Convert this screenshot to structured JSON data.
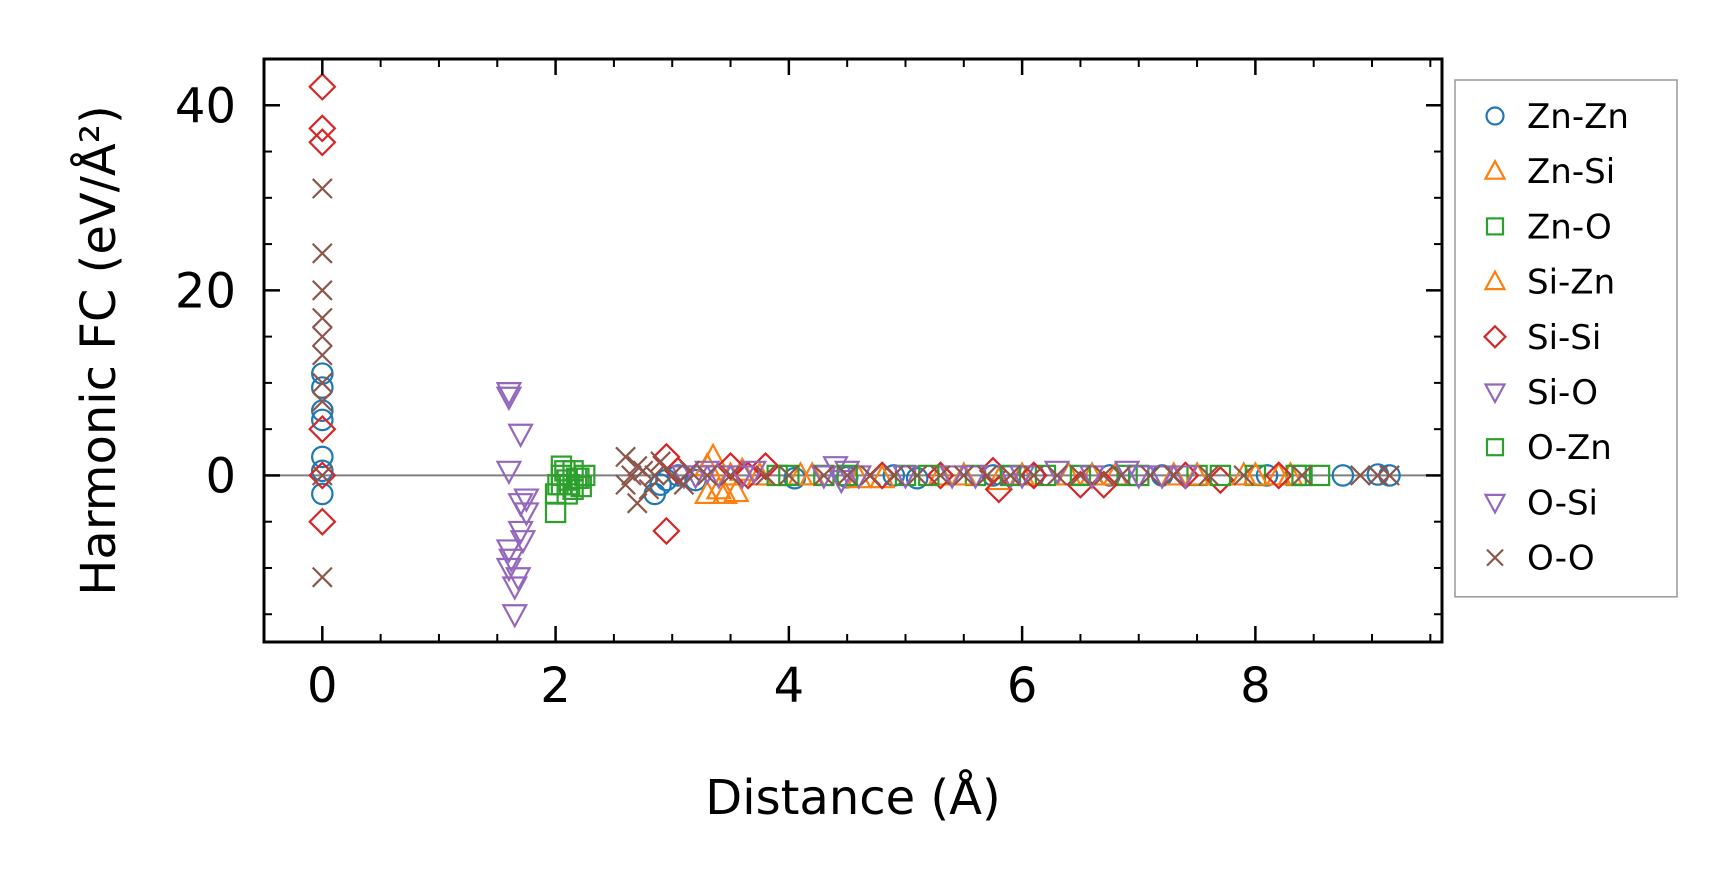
{
  "chart_data": {
    "type": "scatter",
    "xlabel": "Distance (Å)",
    "ylabel": "Harmonic FC (eV/Å²)",
    "xlim": [
      -0.5,
      9.6
    ],
    "ylim": [
      -18,
      45
    ],
    "xticks": [
      0,
      2,
      4,
      6,
      8
    ],
    "yticks": [
      0,
      20,
      40
    ],
    "xtick_labels": [
      "0",
      "2",
      "4",
      "6",
      "8"
    ],
    "ytick_labels": [
      "0",
      "20",
      "40"
    ],
    "zero_line": 0,
    "legend_position": "right-outside",
    "series": [
      {
        "name": "Zn-Zn",
        "marker": "circle",
        "color": "#1f77b4",
        "points": [
          [
            0,
            11
          ],
          [
            0,
            9.5
          ],
          [
            0,
            7
          ],
          [
            0,
            6
          ],
          [
            0,
            2
          ],
          [
            0,
            0.5
          ],
          [
            0,
            -2
          ],
          [
            2.85,
            -2
          ],
          [
            2.9,
            -1
          ],
          [
            2.95,
            -0.5
          ],
          [
            3.05,
            0
          ],
          [
            3.2,
            -0.5
          ],
          [
            4.05,
            -0.3
          ],
          [
            4.5,
            -0.2
          ],
          [
            4.9,
            0
          ],
          [
            5.1,
            -0.3
          ],
          [
            5.75,
            0
          ],
          [
            6.1,
            0
          ],
          [
            6.75,
            0
          ],
          [
            7.2,
            0
          ],
          [
            8.1,
            0
          ],
          [
            8.75,
            0
          ],
          [
            9.05,
            0.1
          ],
          [
            9.15,
            0
          ]
        ]
      },
      {
        "name": "Zn-Si",
        "marker": "triangle-up",
        "color": "#ff7f0e",
        "points": [
          [
            3.3,
            -2
          ],
          [
            3.35,
            2
          ],
          [
            3.4,
            -1.5
          ],
          [
            3.55,
            -1.8
          ],
          [
            3.6,
            0.5
          ],
          [
            3.75,
            0
          ],
          [
            4.2,
            0
          ],
          [
            4.8,
            -0.3
          ],
          [
            5.3,
            0
          ],
          [
            5.8,
            -0.5
          ],
          [
            6.4,
            0
          ],
          [
            6.8,
            0
          ],
          [
            7.3,
            0
          ],
          [
            7.9,
            0
          ],
          [
            8.3,
            0
          ]
        ]
      },
      {
        "name": "Zn-O",
        "marker": "square",
        "color": "#2ca02c",
        "points": [
          [
            2.0,
            -4
          ],
          [
            2.0,
            -2
          ],
          [
            2.05,
            -1
          ],
          [
            2.05,
            0
          ],
          [
            2.05,
            1
          ],
          [
            2.1,
            -2
          ],
          [
            2.1,
            -0.5
          ],
          [
            2.15,
            -1.5
          ],
          [
            2.15,
            0.5
          ],
          [
            2.2,
            -0.3
          ],
          [
            2.25,
            0
          ],
          [
            3.9,
            0
          ],
          [
            4.3,
            0
          ],
          [
            5.0,
            0
          ],
          [
            5.6,
            0
          ],
          [
            6.2,
            0
          ],
          [
            6.9,
            0
          ],
          [
            7.5,
            0
          ],
          [
            8.0,
            0
          ],
          [
            8.35,
            0
          ],
          [
            8.55,
            0
          ]
        ]
      },
      {
        "name": "Si-Zn",
        "marker": "triangle-up",
        "color": "#ff7f0e",
        "points": [
          [
            3.3,
            1
          ],
          [
            3.45,
            -2
          ],
          [
            3.5,
            0
          ],
          [
            4.1,
            0
          ],
          [
            4.6,
            -0.3
          ],
          [
            5.5,
            0
          ],
          [
            6.0,
            0
          ],
          [
            6.6,
            0
          ],
          [
            7.5,
            0
          ],
          [
            8.0,
            0
          ],
          [
            8.2,
            0
          ]
        ]
      },
      {
        "name": "Si-Si",
        "marker": "diamond",
        "color": "#d62728",
        "points": [
          [
            0,
            42
          ],
          [
            0,
            37.5
          ],
          [
            0,
            36
          ],
          [
            0,
            5
          ],
          [
            0,
            0
          ],
          [
            0,
            -5
          ],
          [
            2.95,
            2
          ],
          [
            2.95,
            -6
          ],
          [
            3.05,
            0.5
          ],
          [
            3.5,
            1
          ],
          [
            3.65,
            0
          ],
          [
            3.8,
            1
          ],
          [
            4.8,
            0
          ],
          [
            5.3,
            0
          ],
          [
            5.75,
            0.5
          ],
          [
            5.8,
            -1.5
          ],
          [
            6.1,
            0
          ],
          [
            6.5,
            -1
          ],
          [
            6.7,
            -1
          ],
          [
            7.4,
            0
          ],
          [
            7.7,
            -0.5
          ],
          [
            8.2,
            0
          ]
        ]
      },
      {
        "name": "Si-O",
        "marker": "triangle-down",
        "color": "#9467bd",
        "points": [
          [
            1.6,
            9
          ],
          [
            1.6,
            8.5
          ],
          [
            1.6,
            0.5
          ],
          [
            1.6,
            -8
          ],
          [
            1.6,
            -10
          ],
          [
            1.65,
            -15
          ],
          [
            1.65,
            -12
          ],
          [
            1.7,
            4.5
          ],
          [
            1.7,
            -3
          ],
          [
            1.75,
            -2.5
          ],
          [
            1.75,
            -4
          ],
          [
            1.7,
            -6
          ],
          [
            3.1,
            0
          ],
          [
            3.3,
            0.5
          ],
          [
            3.6,
            0
          ],
          [
            4.4,
            1
          ],
          [
            4.5,
            0.5
          ],
          [
            4.6,
            0
          ],
          [
            5.4,
            0
          ],
          [
            5.9,
            0
          ],
          [
            6.3,
            0.5
          ],
          [
            6.9,
            0.5
          ],
          [
            7.2,
            0
          ]
        ]
      },
      {
        "name": "O-Zn",
        "marker": "square",
        "color": "#2ca02c",
        "points": [
          [
            2.02,
            -1
          ],
          [
            2.08,
            0.5
          ],
          [
            2.12,
            -1
          ],
          [
            2.18,
            -0.3
          ],
          [
            2.22,
            -1.2
          ],
          [
            4.0,
            0
          ],
          [
            4.5,
            0
          ],
          [
            5.2,
            0
          ],
          [
            5.9,
            0
          ],
          [
            6.5,
            0
          ],
          [
            7.0,
            0
          ],
          [
            7.7,
            0
          ],
          [
            8.4,
            0
          ]
        ]
      },
      {
        "name": "O-Si",
        "marker": "triangle-down",
        "color": "#9467bd",
        "points": [
          [
            1.62,
            -9
          ],
          [
            1.68,
            -11
          ],
          [
            1.72,
            -7
          ],
          [
            3.2,
            0
          ],
          [
            3.4,
            0
          ],
          [
            3.7,
            0.5
          ],
          [
            4.3,
            0
          ],
          [
            4.45,
            -0.5
          ],
          [
            5.0,
            0
          ],
          [
            5.6,
            0
          ],
          [
            6.0,
            0
          ],
          [
            6.6,
            0
          ],
          [
            7.0,
            0
          ],
          [
            7.4,
            0
          ]
        ]
      },
      {
        "name": "O-O",
        "marker": "x",
        "color": "#8c564b",
        "points": [
          [
            0,
            31
          ],
          [
            0,
            24
          ],
          [
            0,
            20
          ],
          [
            0,
            17
          ],
          [
            0,
            15
          ],
          [
            0,
            13
          ],
          [
            0,
            10
          ],
          [
            0,
            8
          ],
          [
            0,
            0
          ],
          [
            0,
            -11
          ],
          [
            2.6,
            2
          ],
          [
            2.6,
            -1
          ],
          [
            2.65,
            0
          ],
          [
            2.7,
            -3
          ],
          [
            2.7,
            1
          ],
          [
            2.75,
            0.5
          ],
          [
            2.8,
            -1.5
          ],
          [
            2.85,
            0
          ],
          [
            2.9,
            1.5
          ],
          [
            3.0,
            0
          ],
          [
            3.1,
            -1
          ],
          [
            3.15,
            0.5
          ],
          [
            3.3,
            0
          ],
          [
            3.5,
            0
          ],
          [
            3.8,
            0
          ],
          [
            4.0,
            0
          ],
          [
            4.3,
            0
          ],
          [
            4.5,
            0
          ],
          [
            4.7,
            0
          ],
          [
            4.9,
            0
          ],
          [
            5.1,
            0
          ],
          [
            5.3,
            0
          ],
          [
            5.5,
            0
          ],
          [
            5.7,
            0
          ],
          [
            5.9,
            0
          ],
          [
            6.1,
            0
          ],
          [
            6.3,
            0
          ],
          [
            6.5,
            0
          ],
          [
            6.7,
            0
          ],
          [
            6.85,
            0
          ],
          [
            7.1,
            0
          ],
          [
            7.3,
            0
          ],
          [
            7.6,
            0
          ],
          [
            7.9,
            0
          ],
          [
            8.4,
            0
          ],
          [
            8.9,
            0
          ],
          [
            9.05,
            0
          ],
          [
            9.15,
            0
          ]
        ]
      }
    ]
  }
}
